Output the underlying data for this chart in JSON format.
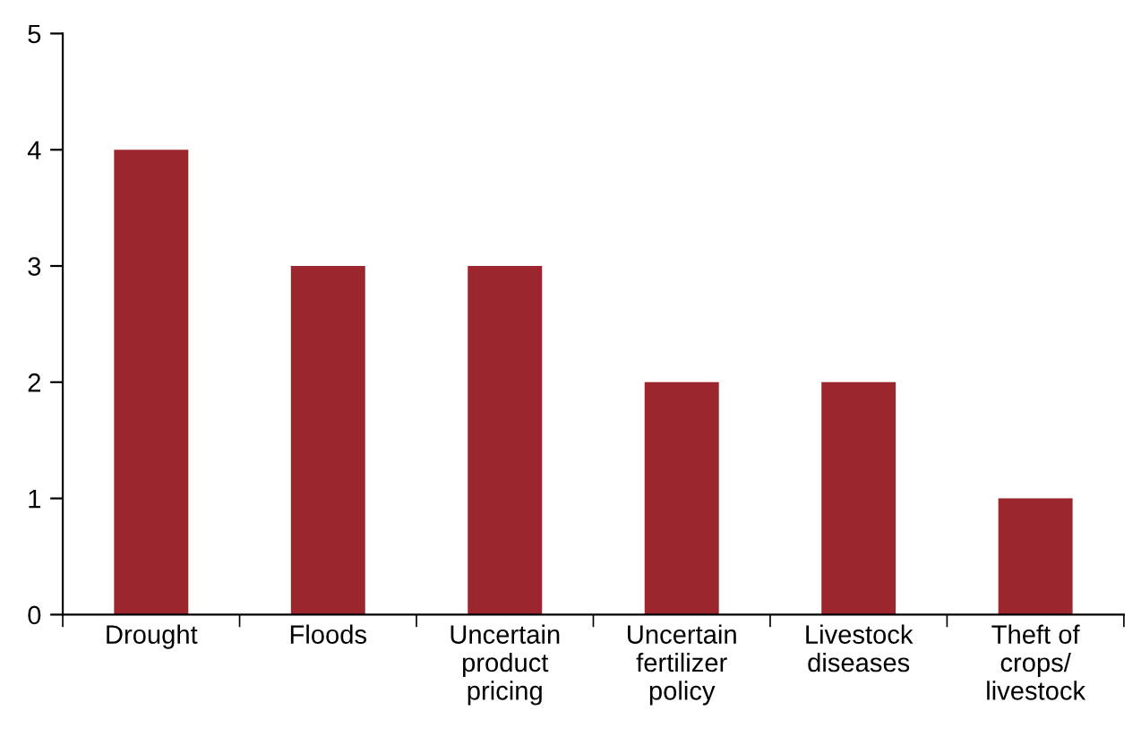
{
  "chart_data": {
    "type": "bar",
    "categories": [
      "Drought",
      "Floods",
      "Uncertain\nproduct\npricing",
      "Uncertain\nfertilizer\npolicy",
      "Livestock\ndiseases",
      "Theft of\ncrops/\nlivestock"
    ],
    "values": [
      4,
      3,
      3,
      2,
      2,
      1
    ],
    "color": "#9b262d",
    "ylim": [
      0,
      5
    ],
    "yticks": [
      0,
      1,
      2,
      3,
      4,
      5
    ],
    "grid": false
  }
}
